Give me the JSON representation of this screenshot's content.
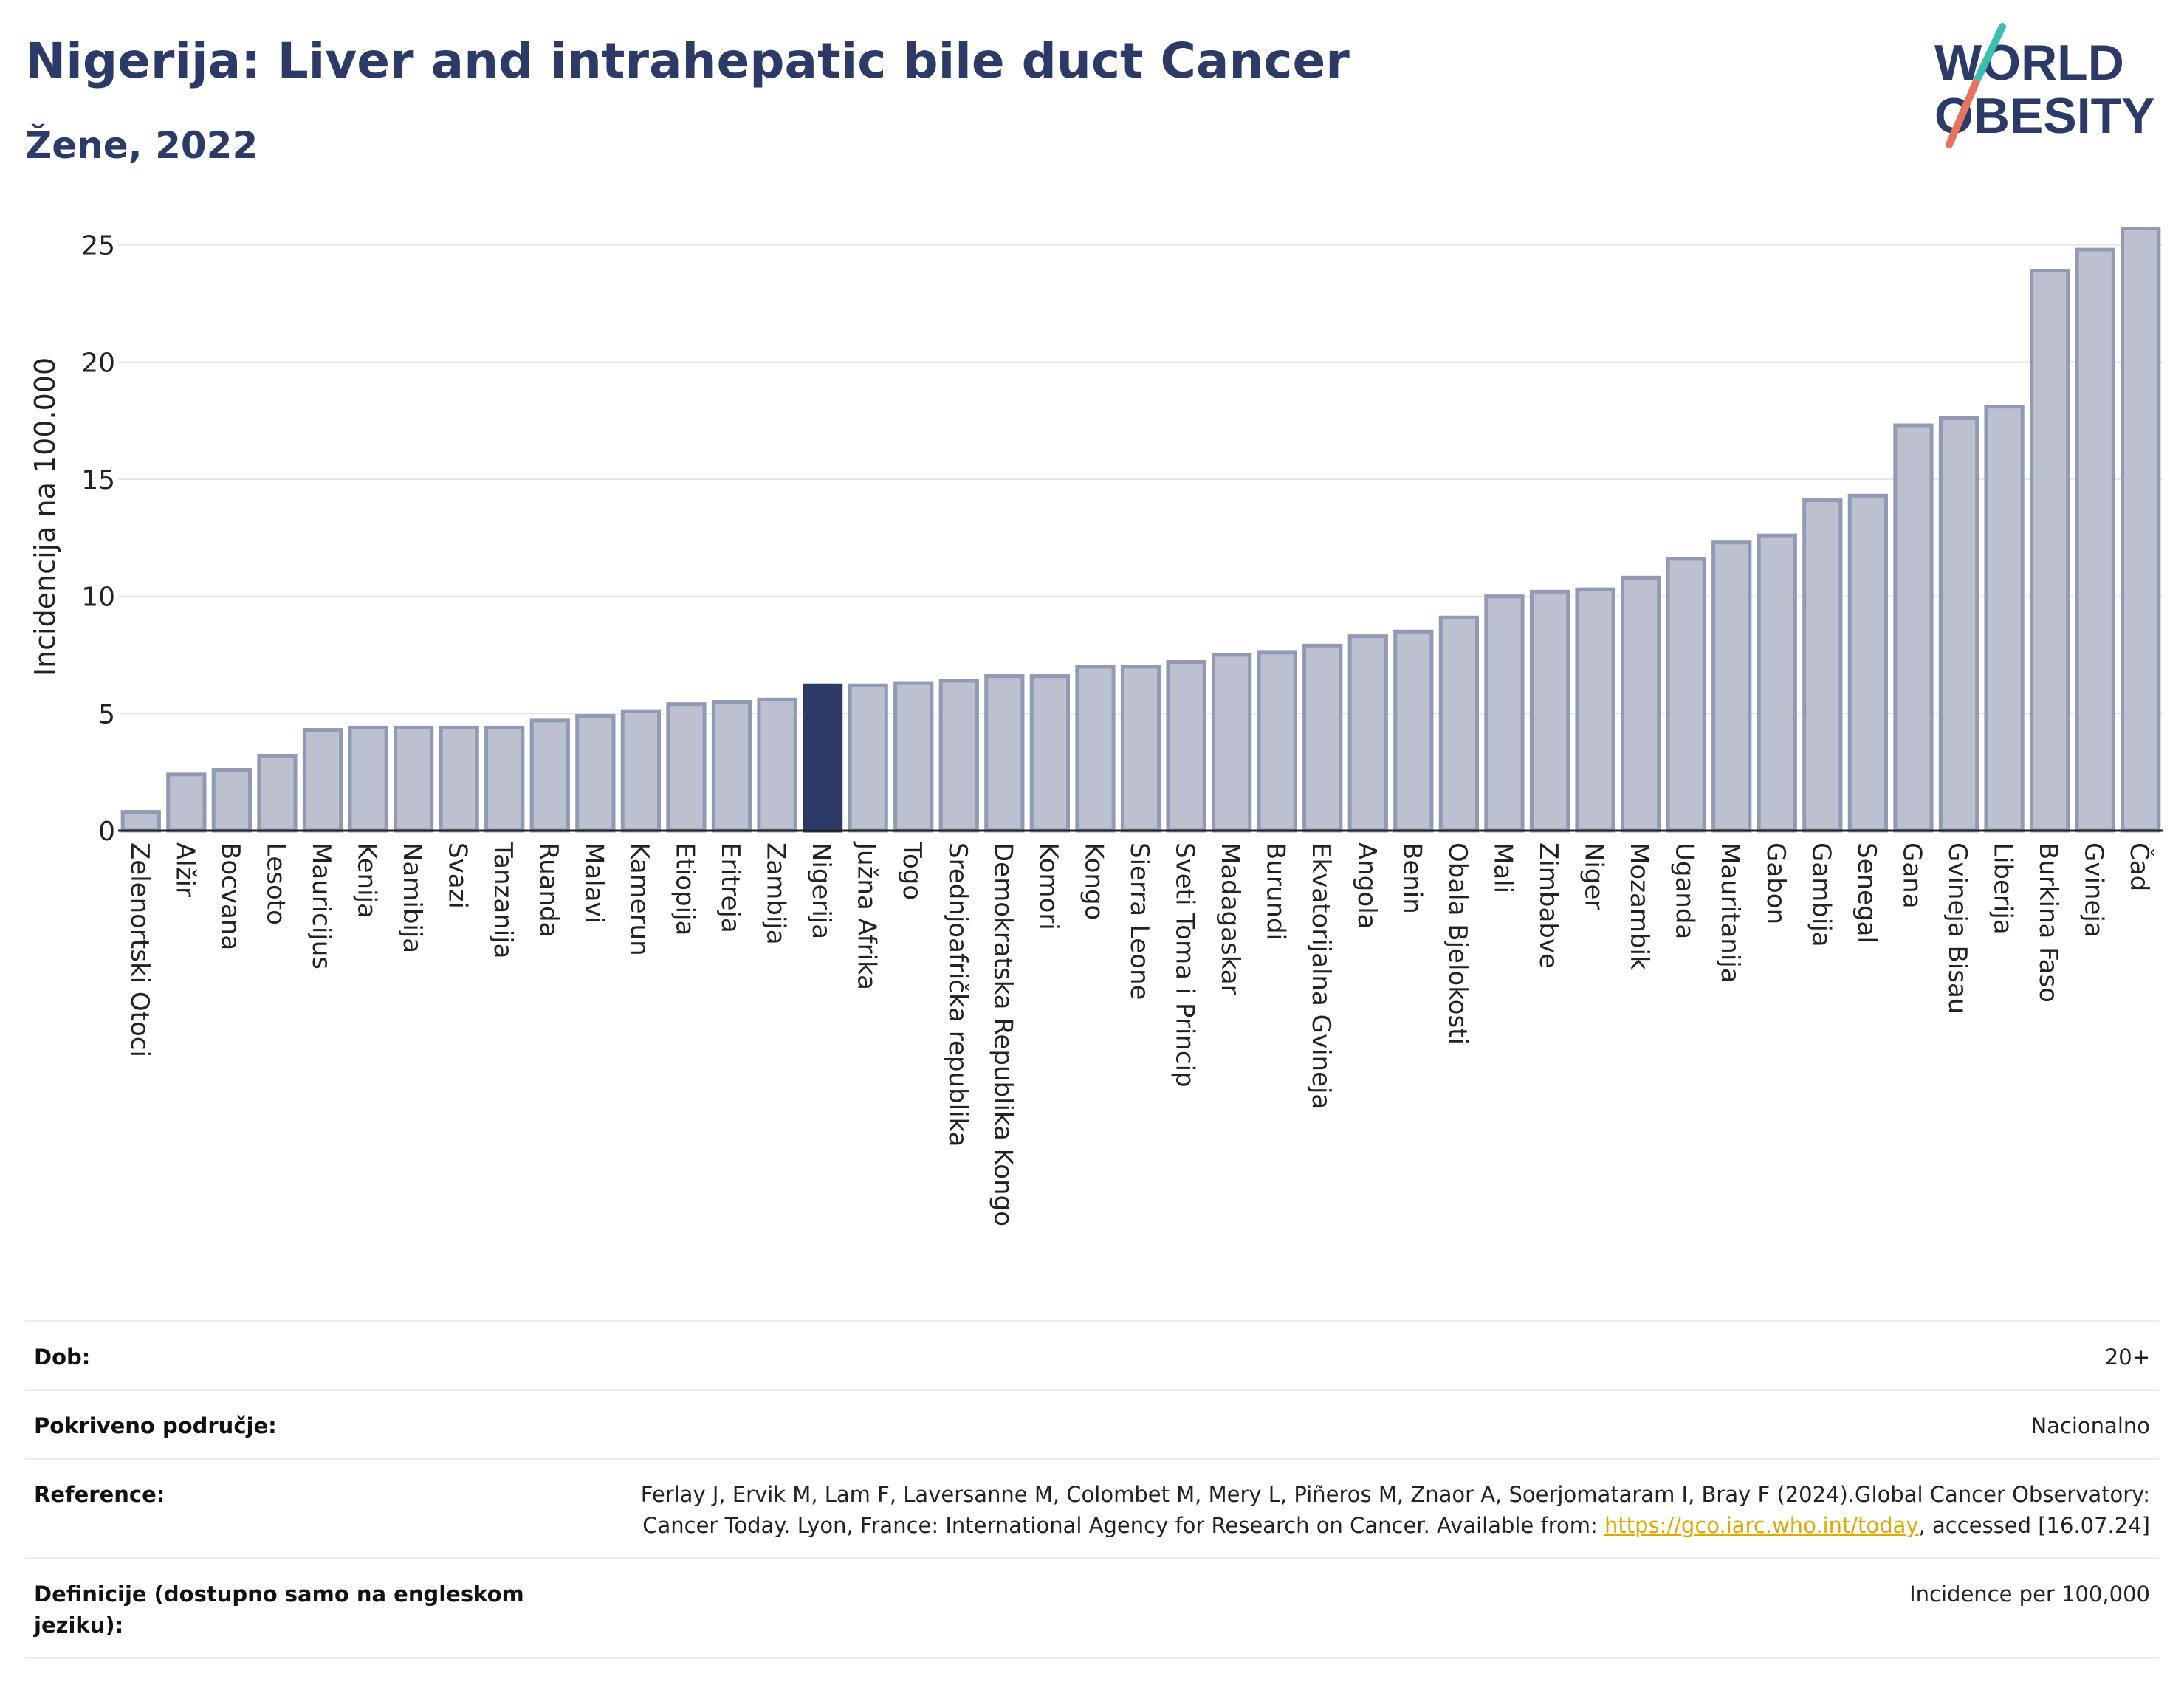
{
  "header": {
    "title": "Nigerija: Liver and intrahepatic bile duct Cancer",
    "subtitle": "Žene, 2022"
  },
  "logo": {
    "line1": "WORLD",
    "line2": "OBESITY",
    "colors": {
      "text": "#2b3a67",
      "slash_top": "#3bbfb0",
      "slash_bottom": "#e8735a"
    }
  },
  "colors": {
    "bar_fill": "#bcc0cf",
    "bar_stroke": "#9199b4",
    "highlight": "#2b3a67",
    "grid": "#e6e6e6",
    "axis": "#222222"
  },
  "chart_data": {
    "type": "bar",
    "ylabel": "Incidencija na 100.000",
    "ylim": [
      0,
      26
    ],
    "yticks": [
      0,
      5,
      10,
      15,
      20,
      25
    ],
    "grid": true,
    "highlight": "Nigerija",
    "categories": [
      "Zelenortski Otoci",
      "Alžir",
      "Bocvana",
      "Lesoto",
      "Mauricijus",
      "Kenija",
      "Namibija",
      "Svazi",
      "Tanzanija",
      "Ruanda",
      "Malavi",
      "Kamerun",
      "Etiopija",
      "Eritreja",
      "Zambija",
      "Nigerija",
      "Južna Afrika",
      "Togo",
      "Srednjoafrička republika",
      "Demokratska Republika Kongo",
      "Komori",
      "Kongo",
      "Sierra Leone",
      "Sveti Toma i Princip",
      "Madagaskar",
      "Burundi",
      "Ekvatorijalna Gvineja",
      "Angola",
      "Benin",
      "Obala Bjelokosti",
      "Mali",
      "Zimbabve",
      "Niger",
      "Mozambik",
      "Uganda",
      "Mauritanija",
      "Gabon",
      "Gambija",
      "Senegal",
      "Gana",
      "Gvineja Bisau",
      "Liberija",
      "Burkina Faso",
      "Gvineja",
      "Čad"
    ],
    "values": [
      0.8,
      2.4,
      2.6,
      3.2,
      4.3,
      4.4,
      4.4,
      4.4,
      4.4,
      4.7,
      4.9,
      5.1,
      5.4,
      5.5,
      5.6,
      6.2,
      6.2,
      6.3,
      6.4,
      6.6,
      6.6,
      7.0,
      7.0,
      7.2,
      7.5,
      7.6,
      7.9,
      8.3,
      8.5,
      9.1,
      10.0,
      10.2,
      10.3,
      10.8,
      11.6,
      12.3,
      12.6,
      14.1,
      14.3,
      17.3,
      17.6,
      18.1,
      23.9,
      24.8,
      25.7
    ]
  },
  "meta": {
    "rows": [
      {
        "label": "Dob:",
        "value": "20+"
      },
      {
        "label": "Pokriveno područje:",
        "value": "Nacionalno"
      },
      {
        "label": "Reference:",
        "value_pre": "Ferlay J, Ervik M, Lam F, Laversanne M, Colombet M, Mery L, Piñeros M, Znaor A, Soerjomataram I, Bray F (2024).Global Cancer Observatory: Cancer Today. Lyon, France: International Agency for Research on Cancer. Available from: ",
        "link": "https://gco.iarc.who.int/today",
        "value_post": ", accessed [16.07.24]"
      },
      {
        "label": "Definicije (dostupno samo na engleskom jeziku):",
        "value": "Incidence per 100,000"
      }
    ]
  }
}
